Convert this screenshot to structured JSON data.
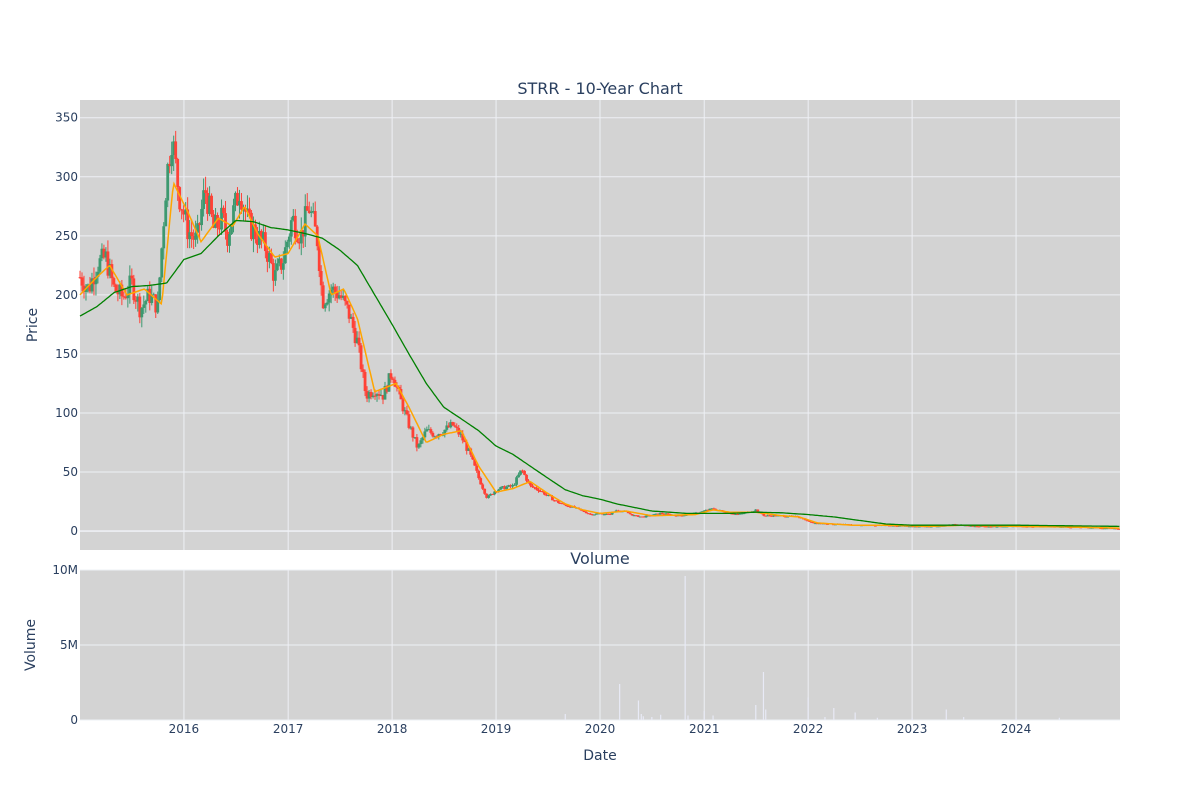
{
  "chart_data": [
    {
      "type": "candlestick",
      "title": "STRR - 10-Year Chart",
      "ylabel": "Price",
      "xlabel": "",
      "ylim": [
        -16,
        365
      ],
      "xlim": [
        "2015-01-01",
        "2024-12-31"
      ],
      "yticks": [
        0,
        50,
        100,
        150,
        200,
        250,
        300,
        350
      ],
      "xticks": [
        "2016",
        "2017",
        "2018",
        "2019",
        "2020",
        "2021",
        "2022",
        "2023",
        "2024"
      ],
      "grid": true,
      "legend": "none",
      "colors": {
        "increasing": "#3d9970",
        "decreasing": "#ff4136",
        "ma_short": "#ffa500",
        "ma_long": "#008000",
        "plot_bg": "#d3d3d3",
        "grid": "#eef0f5",
        "text": "#2a3f5f"
      },
      "price_path": [
        [
          "2015-01-01",
          215
        ],
        [
          "2015-02-01",
          205
        ],
        [
          "2015-03-01",
          225
        ],
        [
          "2015-04-01",
          232
        ],
        [
          "2015-05-01",
          205
        ],
        [
          "2015-06-01",
          198
        ],
        [
          "2015-07-01",
          210
        ],
        [
          "2015-08-01",
          188
        ],
        [
          "2015-09-01",
          200
        ],
        [
          "2015-10-01",
          190
        ],
        [
          "2015-11-01",
          300
        ],
        [
          "2015-11-20",
          335
        ],
        [
          "2015-12-15",
          285
        ],
        [
          "2016-01-15",
          255
        ],
        [
          "2016-02-15",
          245
        ],
        [
          "2016-03-15",
          290
        ],
        [
          "2016-04-15",
          255
        ],
        [
          "2016-05-15",
          265
        ],
        [
          "2016-06-01",
          250
        ],
        [
          "2016-07-15",
          290
        ],
        [
          "2016-08-15",
          260
        ],
        [
          "2016-09-15",
          250
        ],
        [
          "2016-10-15",
          240
        ],
        [
          "2016-11-15",
          215
        ],
        [
          "2016-12-15",
          230
        ],
        [
          "2017-01-15",
          265
        ],
        [
          "2017-02-15",
          250
        ],
        [
          "2017-03-15",
          275
        ],
        [
          "2017-04-15",
          245
        ],
        [
          "2017-05-01",
          195
        ],
        [
          "2017-06-01",
          205
        ],
        [
          "2017-07-01",
          200
        ],
        [
          "2017-08-01",
          185
        ],
        [
          "2017-09-01",
          160
        ],
        [
          "2017-10-01",
          115
        ],
        [
          "2017-11-01",
          120
        ],
        [
          "2017-12-01",
          115
        ],
        [
          "2018-01-01",
          135
        ],
        [
          "2018-02-01",
          110
        ],
        [
          "2018-03-01",
          90
        ],
        [
          "2018-04-01",
          70
        ],
        [
          "2018-05-01",
          85
        ],
        [
          "2018-06-01",
          82
        ],
        [
          "2018-07-01",
          85
        ],
        [
          "2018-08-01",
          90
        ],
        [
          "2018-09-01",
          80
        ],
        [
          "2018-10-01",
          65
        ],
        [
          "2018-11-01",
          45
        ],
        [
          "2018-12-01",
          28
        ],
        [
          "2019-01-01",
          35
        ],
        [
          "2019-02-01",
          37
        ],
        [
          "2019-03-01",
          38
        ],
        [
          "2019-04-01",
          52
        ],
        [
          "2019-05-01",
          38
        ],
        [
          "2019-06-01",
          35
        ],
        [
          "2019-07-01",
          30
        ],
        [
          "2019-08-01",
          25
        ],
        [
          "2019-09-01",
          22
        ],
        [
          "2019-10-01",
          20
        ],
        [
          "2019-11-01",
          17
        ],
        [
          "2019-12-01",
          14
        ],
        [
          "2020-01-01",
          15
        ],
        [
          "2020-02-01",
          14
        ],
        [
          "2020-03-01",
          18
        ],
        [
          "2020-04-01",
          16
        ],
        [
          "2020-05-01",
          13
        ],
        [
          "2020-06-01",
          12
        ],
        [
          "2020-08-01",
          15
        ],
        [
          "2020-10-01",
          13
        ],
        [
          "2020-12-01",
          15
        ],
        [
          "2021-01-01",
          17
        ],
        [
          "2021-02-01",
          19
        ],
        [
          "2021-03-01",
          17
        ],
        [
          "2021-05-01",
          14
        ],
        [
          "2021-07-01",
          18
        ],
        [
          "2021-08-01",
          13
        ],
        [
          "2021-10-01",
          13
        ],
        [
          "2021-12-01",
          12
        ],
        [
          "2022-01-15",
          7
        ],
        [
          "2022-04-01",
          6
        ],
        [
          "2022-07-01",
          5
        ],
        [
          "2022-10-01",
          5
        ],
        [
          "2023-01-01",
          4
        ],
        [
          "2023-04-01",
          4
        ],
        [
          "2023-06-01",
          6
        ],
        [
          "2023-08-01",
          4
        ],
        [
          "2023-10-01",
          4
        ],
        [
          "2024-01-01",
          4
        ],
        [
          "2024-04-01",
          4
        ],
        [
          "2024-07-01",
          3.5
        ],
        [
          "2024-10-01",
          3
        ],
        [
          "2024-12-31",
          2
        ]
      ],
      "ma_short": [
        [
          "2015-01-01",
          200
        ],
        [
          "2015-03-01",
          215
        ],
        [
          "2015-04-15",
          225
        ],
        [
          "2015-06-15",
          200
        ],
        [
          "2015-08-15",
          205
        ],
        [
          "2015-10-15",
          192
        ],
        [
          "2015-11-25",
          295
        ],
        [
          "2016-01-15",
          270
        ],
        [
          "2016-03-01",
          245
        ],
        [
          "2016-05-01",
          265
        ],
        [
          "2016-06-20",
          258
        ],
        [
          "2016-08-01",
          275
        ],
        [
          "2016-09-15",
          252
        ],
        [
          "2016-11-15",
          232
        ],
        [
          "2017-01-01",
          235
        ],
        [
          "2017-03-01",
          260
        ],
        [
          "2017-04-15",
          250
        ],
        [
          "2017-06-01",
          200
        ],
        [
          "2017-07-15",
          205
        ],
        [
          "2017-09-01",
          180
        ],
        [
          "2017-11-01",
          118
        ],
        [
          "2018-01-15",
          125
        ],
        [
          "2018-03-01",
          105
        ],
        [
          "2018-05-01",
          75
        ],
        [
          "2018-07-01",
          82
        ],
        [
          "2018-09-01",
          85
        ],
        [
          "2018-11-01",
          55
        ],
        [
          "2019-01-01",
          33
        ],
        [
          "2019-03-01",
          36
        ],
        [
          "2019-05-01",
          42
        ],
        [
          "2019-07-01",
          32
        ],
        [
          "2019-09-01",
          23
        ],
        [
          "2019-11-01",
          18
        ],
        [
          "2020-01-01",
          15
        ],
        [
          "2020-04-01",
          17
        ],
        [
          "2020-07-01",
          13
        ],
        [
          "2020-12-01",
          14
        ],
        [
          "2021-02-01",
          18
        ],
        [
          "2021-04-01",
          16
        ],
        [
          "2021-07-01",
          16
        ],
        [
          "2021-10-01",
          13
        ],
        [
          "2021-12-01",
          12
        ],
        [
          "2022-02-01",
          7
        ],
        [
          "2022-06-01",
          5
        ],
        [
          "2022-10-01",
          5
        ],
        [
          "2023-03-01",
          4
        ],
        [
          "2023-07-01",
          5
        ],
        [
          "2024-01-01",
          4
        ],
        [
          "2024-07-01",
          3.5
        ],
        [
          "2024-12-31",
          2.5
        ]
      ],
      "ma_long": [
        [
          "2015-01-01",
          182
        ],
        [
          "2015-03-01",
          190
        ],
        [
          "2015-05-01",
          202
        ],
        [
          "2015-07-01",
          207
        ],
        [
          "2015-09-01",
          208
        ],
        [
          "2015-11-01",
          210
        ],
        [
          "2016-01-01",
          230
        ],
        [
          "2016-03-01",
          235
        ],
        [
          "2016-05-01",
          250
        ],
        [
          "2016-07-01",
          263
        ],
        [
          "2016-09-01",
          262
        ],
        [
          "2016-11-01",
          257
        ],
        [
          "2017-01-01",
          255
        ],
        [
          "2017-03-01",
          252
        ],
        [
          "2017-05-01",
          248
        ],
        [
          "2017-07-01",
          238
        ],
        [
          "2017-09-01",
          225
        ],
        [
          "2017-11-01",
          200
        ],
        [
          "2018-01-01",
          175
        ],
        [
          "2018-03-01",
          150
        ],
        [
          "2018-05-01",
          125
        ],
        [
          "2018-07-01",
          105
        ],
        [
          "2018-09-01",
          95
        ],
        [
          "2018-11-01",
          85
        ],
        [
          "2019-01-01",
          72
        ],
        [
          "2019-03-01",
          65
        ],
        [
          "2019-05-01",
          55
        ],
        [
          "2019-07-01",
          45
        ],
        [
          "2019-09-01",
          35
        ],
        [
          "2019-11-01",
          30
        ],
        [
          "2020-01-01",
          27
        ],
        [
          "2020-03-01",
          23
        ],
        [
          "2020-05-01",
          20
        ],
        [
          "2020-07-01",
          17
        ],
        [
          "2020-09-01",
          16
        ],
        [
          "2020-11-01",
          15
        ],
        [
          "2021-01-01",
          15
        ],
        [
          "2021-04-01",
          15
        ],
        [
          "2021-07-01",
          16
        ],
        [
          "2021-10-01",
          15.5
        ],
        [
          "2022-01-01",
          14
        ],
        [
          "2022-04-01",
          12
        ],
        [
          "2022-07-01",
          9
        ],
        [
          "2022-10-01",
          6
        ],
        [
          "2023-01-01",
          5
        ],
        [
          "2023-07-01",
          5
        ],
        [
          "2024-01-01",
          5
        ],
        [
          "2024-07-01",
          4.5
        ],
        [
          "2024-12-31",
          4
        ]
      ]
    },
    {
      "type": "bar",
      "title": "Volume",
      "ylabel": "Volume",
      "xlabel": "Date",
      "ylim": [
        0,
        10000000
      ],
      "yticks": [
        0,
        5000000,
        10000000
      ],
      "ytick_labels": [
        "0",
        "5M",
        "10M"
      ],
      "xticks": [
        "2016",
        "2017",
        "2018",
        "2019",
        "2020",
        "2021",
        "2022",
        "2023",
        "2024"
      ],
      "bar_color": "#e8eaf6",
      "spikes": [
        [
          "2019-09-01",
          400000
        ],
        [
          "2020-03-10",
          2400000
        ],
        [
          "2020-05-15",
          1300000
        ],
        [
          "2020-05-25",
          400000
        ],
        [
          "2020-06-01",
          250000
        ],
        [
          "2020-07-01",
          200000
        ],
        [
          "2020-08-01",
          350000
        ],
        [
          "2020-10-26",
          9600000
        ],
        [
          "2020-11-05",
          300000
        ],
        [
          "2021-01-01",
          600000
        ],
        [
          "2021-02-01",
          300000
        ],
        [
          "2021-07-01",
          1000000
        ],
        [
          "2021-07-28",
          3200000
        ],
        [
          "2021-08-05",
          700000
        ],
        [
          "2022-01-01",
          1500000
        ],
        [
          "2022-03-01",
          200000
        ],
        [
          "2022-04-01",
          800000
        ],
        [
          "2022-06-15",
          500000
        ],
        [
          "2022-09-01",
          150000
        ],
        [
          "2023-01-01",
          150000
        ],
        [
          "2023-05-01",
          700000
        ],
        [
          "2023-07-01",
          200000
        ],
        [
          "2024-01-01",
          150000
        ],
        [
          "2024-06-01",
          150000
        ]
      ]
    }
  ]
}
